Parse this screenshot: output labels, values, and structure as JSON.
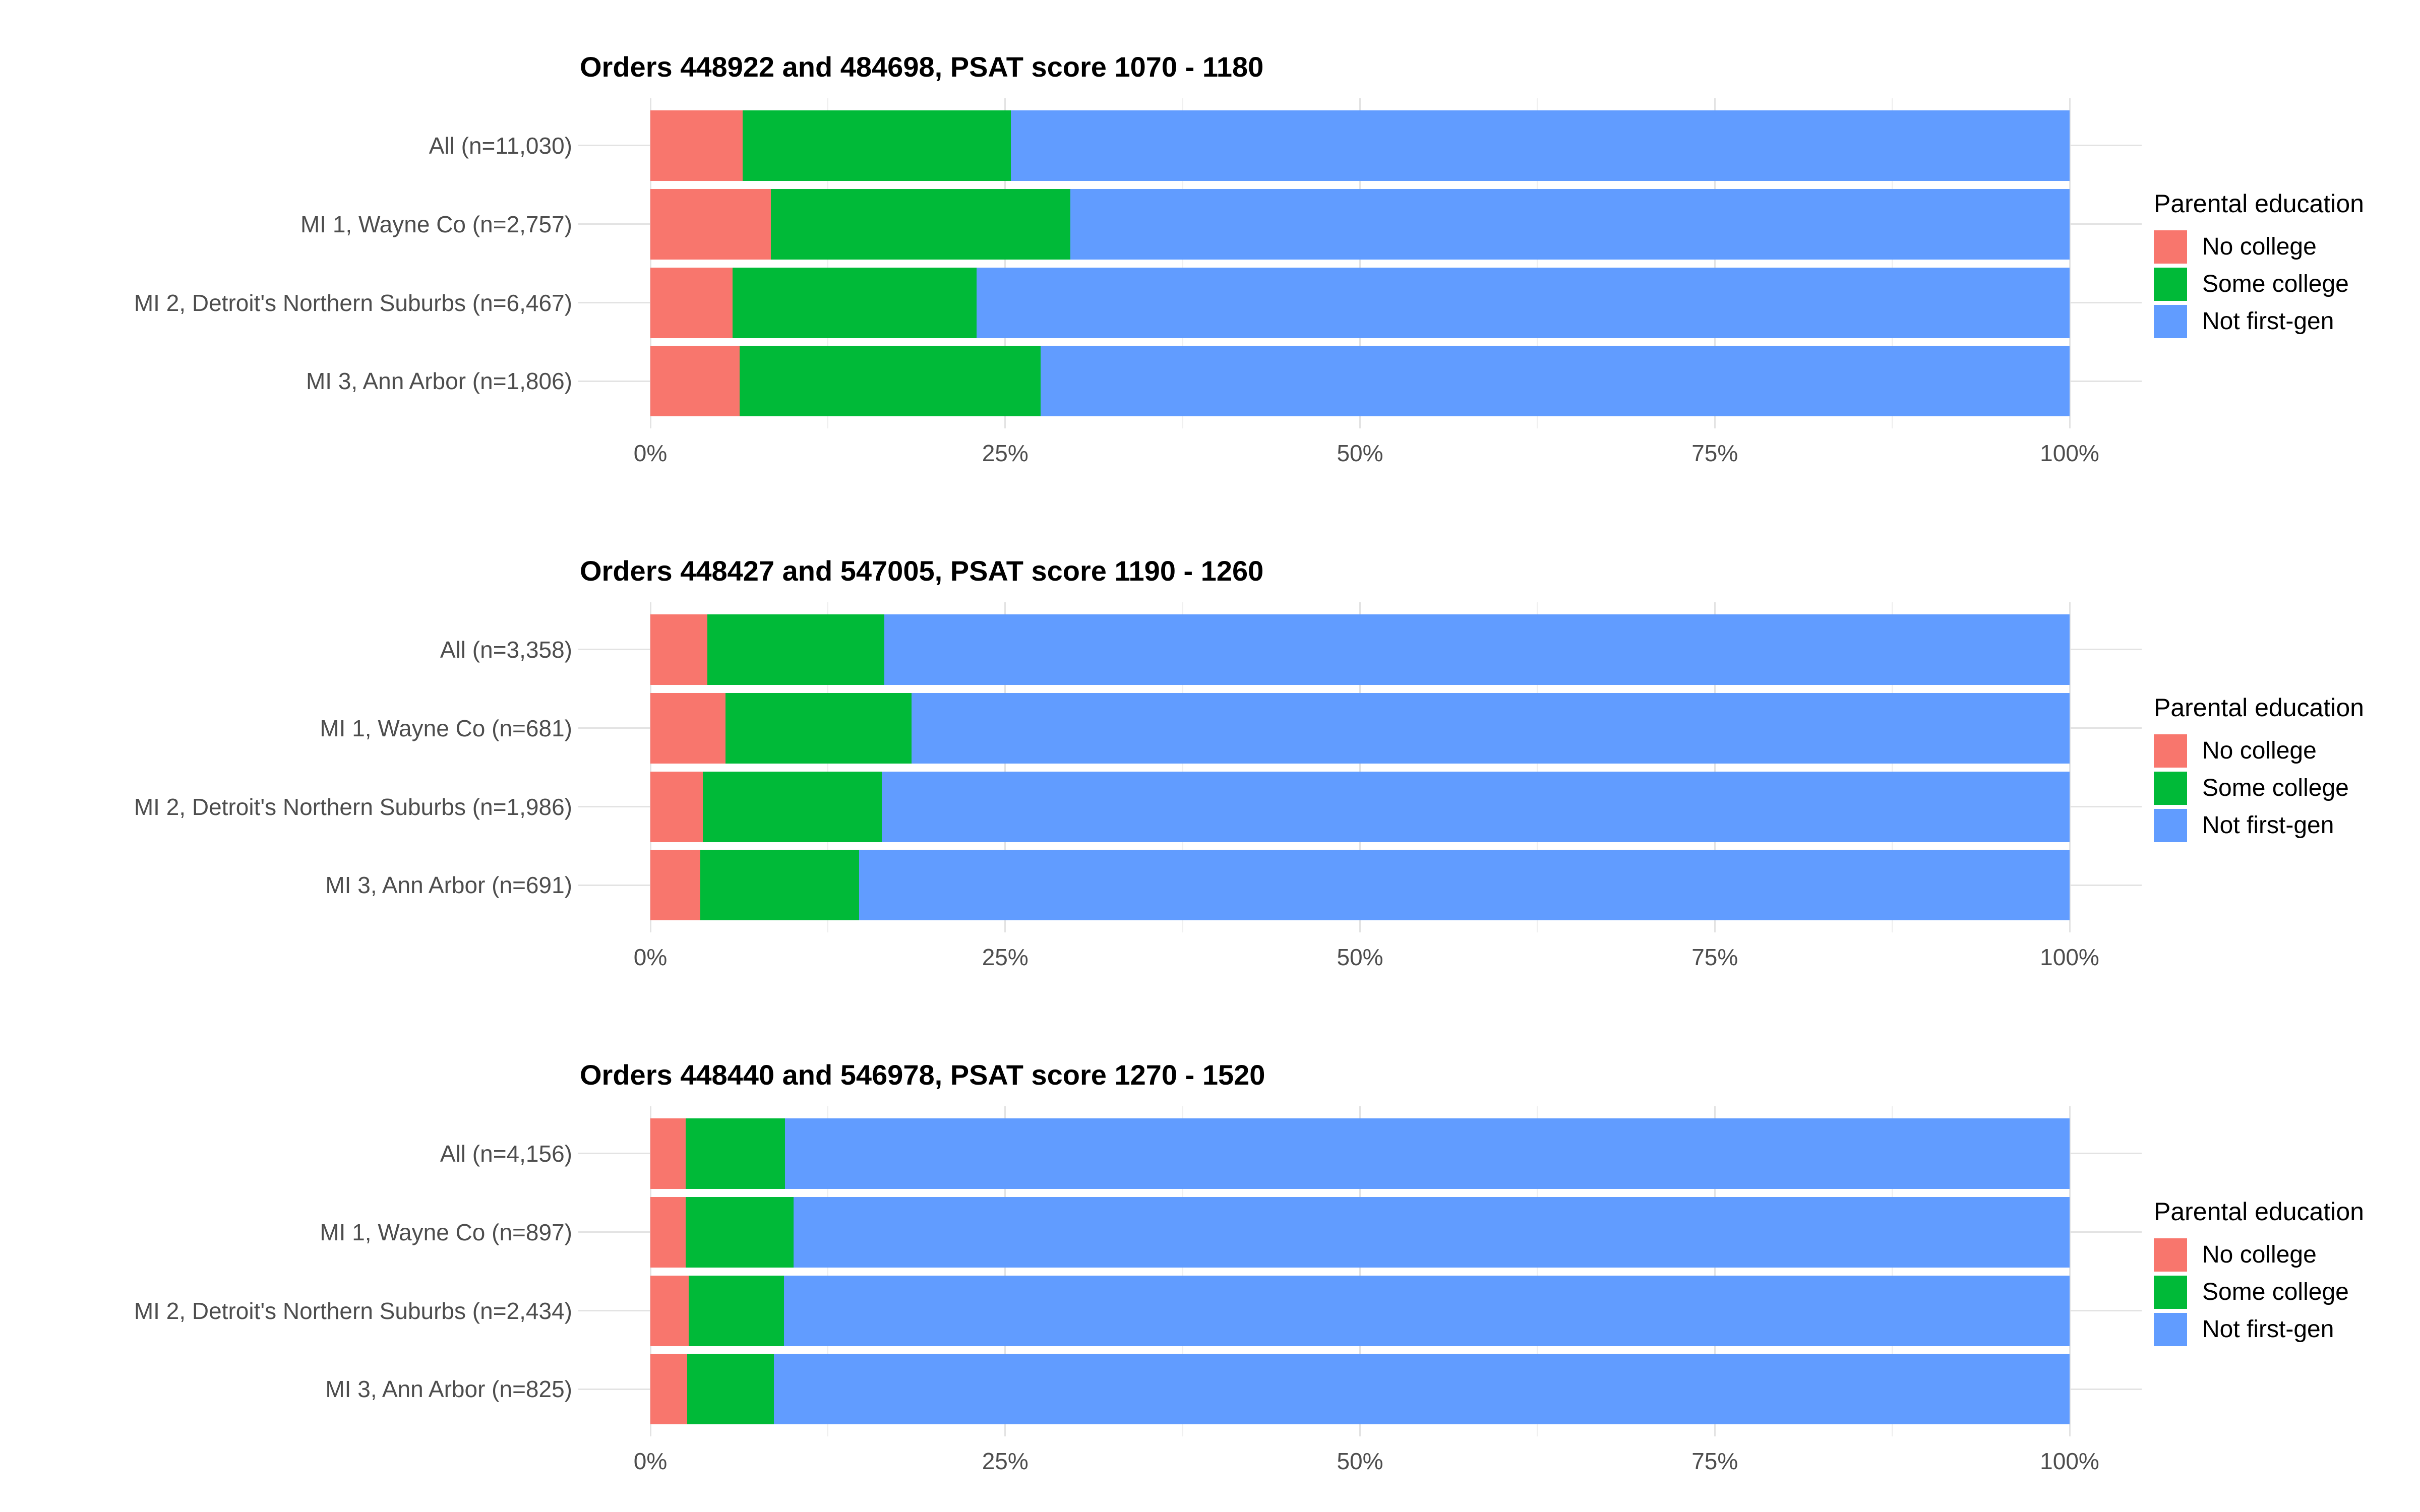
{
  "page": {
    "background": "#ffffff"
  },
  "legend": {
    "title": "Parental education",
    "items": [
      {
        "label": "No college",
        "color": "#F8766D"
      },
      {
        "label": "Some college",
        "color": "#00BA38"
      },
      {
        "label": "Not first-gen",
        "color": "#619CFF"
      }
    ]
  },
  "x_axis_ticks": [
    "0%",
    "25%",
    "50%",
    "75%",
    "100%"
  ],
  "chart_data": [
    {
      "type": "bar",
      "stacked": true,
      "orientation": "horizontal",
      "units": "percent",
      "title": "Orders 448922 and 484698, PSAT score 1070 - 1180",
      "categories": [
        "All (n=11,030)",
        "MI 1, Wayne Co (n=2,757)",
        "MI 2, Detroit's Northern Suburbs (n=6,467)",
        "MI 3, Ann Arbor (n=1,806)"
      ],
      "series": [
        {
          "name": "No college",
          "color": "#F8766D",
          "values": [
            6.5,
            8.5,
            5.8,
            6.3
          ]
        },
        {
          "name": "Some college",
          "color": "#00BA38",
          "values": [
            18.9,
            21.1,
            17.2,
            21.2
          ]
        },
        {
          "name": "Not first-gen",
          "color": "#619CFF",
          "values": [
            74.6,
            70.4,
            77.0,
            72.5
          ]
        }
      ],
      "xlabel": "",
      "ylabel": "",
      "xlim": [
        0,
        100
      ],
      "x_ticks": [
        "0%",
        "25%",
        "50%",
        "75%",
        "100%"
      ],
      "grid": "major and minor vertical, light gray",
      "legend_title": "Parental education",
      "legend_position": "right"
    },
    {
      "type": "bar",
      "stacked": true,
      "orientation": "horizontal",
      "units": "percent",
      "title": "Orders 448427 and 547005, PSAT score 1190 - 1260",
      "categories": [
        "All (n=3,358)",
        "MI 1, Wayne Co (n=681)",
        "MI 2, Detroit's Northern Suburbs (n=1,986)",
        "MI 3, Ann Arbor (n=691)"
      ],
      "series": [
        {
          "name": "No college",
          "color": "#F8766D",
          "values": [
            4.0,
            5.3,
            3.7,
            3.5
          ]
        },
        {
          "name": "Some college",
          "color": "#00BA38",
          "values": [
            12.5,
            13.1,
            12.6,
            11.2
          ]
        },
        {
          "name": "Not first-gen",
          "color": "#619CFF",
          "values": [
            83.5,
            81.6,
            83.7,
            85.3
          ]
        }
      ],
      "xlabel": "",
      "ylabel": "",
      "xlim": [
        0,
        100
      ],
      "x_ticks": [
        "0%",
        "25%",
        "50%",
        "75%",
        "100%"
      ],
      "grid": "major and minor vertical, light gray",
      "legend_title": "Parental education",
      "legend_position": "right"
    },
    {
      "type": "bar",
      "stacked": true,
      "orientation": "horizontal",
      "units": "percent",
      "title": "Orders 448440 and 546978, PSAT score 1270 - 1520",
      "categories": [
        "All (n=4,156)",
        "MI 1, Wayne Co (n=897)",
        "MI 2, Detroit's Northern Suburbs (n=2,434)",
        "MI 3, Ann Arbor (n=825)"
      ],
      "series": [
        {
          "name": "No college",
          "color": "#F8766D",
          "values": [
            2.5,
            2.5,
            2.7,
            2.6
          ]
        },
        {
          "name": "Some college",
          "color": "#00BA38",
          "values": [
            7.0,
            7.6,
            6.7,
            6.1
          ]
        },
        {
          "name": "Not first-gen",
          "color": "#619CFF",
          "values": [
            90.5,
            89.9,
            90.6,
            91.3
          ]
        }
      ],
      "xlabel": "",
      "ylabel": "",
      "xlim": [
        0,
        100
      ],
      "x_ticks": [
        "0%",
        "25%",
        "50%",
        "75%",
        "100%"
      ],
      "grid": "major and minor vertical, light gray",
      "legend_title": "Parental education",
      "legend_position": "right"
    }
  ]
}
